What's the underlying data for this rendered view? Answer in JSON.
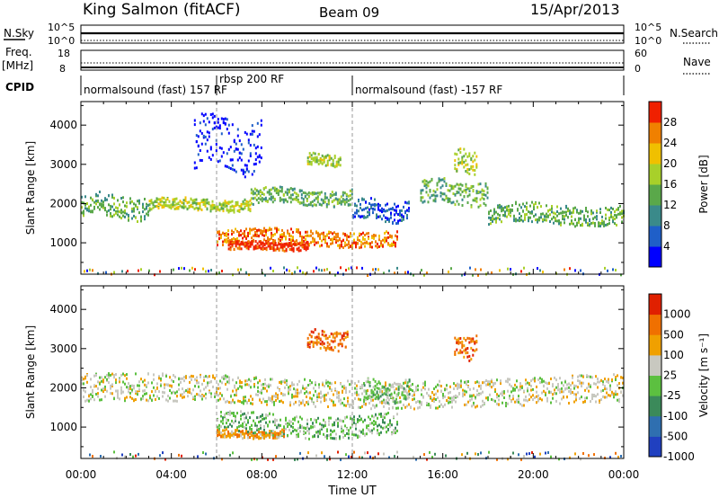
{
  "header": {
    "station": "King Salmon (fitACF)",
    "beam": "Beam 09",
    "date": "15/Apr/2013"
  },
  "summary_panels": {
    "nsky_label": "N.Sky",
    "nsearch_label": "N.Search",
    "freq_label_1": "Freq.",
    "freq_label_2": "[MHz]",
    "nave_label": "Nave",
    "cpid_label": "CPID",
    "nsky_ticks": [
      "10^5",
      "10^0"
    ],
    "nsearch_ticks": [
      "10^5",
      "10^0"
    ],
    "freq_ticks": [
      "18",
      "8"
    ],
    "nave_ticks": [
      "60",
      "0"
    ],
    "cpid_segments": [
      {
        "label": "normalsound (fast) 157 RF",
        "start_hr": 0.0,
        "end_hr": 6.0
      },
      {
        "label": "rbsp 200 RF",
        "start_hr": 6.0,
        "end_hr": 12.0
      },
      {
        "label": "normalsound (fast) -157 RF",
        "start_hr": 12.0,
        "end_hr": 24.0
      }
    ]
  },
  "chart_data": [
    {
      "type": "heatmap",
      "quantity": "power",
      "ylabel": "Slant Range [km]",
      "yticks": [
        1000,
        2000,
        3000,
        4000
      ],
      "ylim": [
        200,
        4600
      ],
      "xlim_hours": [
        0,
        24
      ],
      "colorbar": {
        "label": "Power [dB]",
        "ticks": [
          "4",
          "8",
          "12",
          "16",
          "20",
          "24",
          "28"
        ],
        "colors": [
          "#0000ff",
          "#1f5fc8",
          "#3a8a8a",
          "#5aa84a",
          "#a8d02a",
          "#f0c000",
          "#f08000",
          "#f02000"
        ]
      },
      "bands": [
        {
          "from_hr": 0.0,
          "to_hr": 3.0,
          "r0": 1650,
          "r1": 2250,
          "level": 3
        },
        {
          "from_hr": 3.0,
          "to_hr": 7.5,
          "r0": 1850,
          "r1": 2150,
          "level": 4
        },
        {
          "from_hr": 7.5,
          "to_hr": 12.0,
          "r0": 2000,
          "r1": 2400,
          "level": 3
        },
        {
          "from_hr": 12.0,
          "to_hr": 14.5,
          "r0": 1600,
          "r1": 2100,
          "level": 1
        },
        {
          "from_hr": 15.0,
          "to_hr": 18.0,
          "r0": 2000,
          "r1": 2600,
          "level": 3
        },
        {
          "from_hr": 18.0,
          "to_hr": 24.0,
          "r0": 1500,
          "r1": 2000,
          "level": 3
        },
        {
          "from_hr": 6.0,
          "to_hr": 14.0,
          "r0": 950,
          "r1": 1350,
          "level": 6
        },
        {
          "from_hr": 6.5,
          "to_hr": 10.0,
          "r0": 850,
          "r1": 1050,
          "level": 7
        },
        {
          "from_hr": 10.0,
          "to_hr": 11.5,
          "r0": 3000,
          "r1": 3300,
          "level": 4
        },
        {
          "from_hr": 16.5,
          "to_hr": 17.5,
          "r0": 2800,
          "r1": 3400,
          "level": 4
        },
        {
          "from_hr": 5.0,
          "to_hr": 8.0,
          "r0": 2900,
          "r1": 4200,
          "level": 0
        }
      ]
    },
    {
      "type": "heatmap",
      "quantity": "velocity",
      "ylabel": "Slant Range [km]",
      "yticks": [
        1000,
        2000,
        3000,
        4000
      ],
      "ylim": [
        200,
        4600
      ],
      "xlim_hours": [
        0,
        24
      ],
      "xticks": [
        "00:00",
        "04:00",
        "08:00",
        "12:00",
        "16:00",
        "20:00",
        "00:00"
      ],
      "xlabel": "Time UT",
      "colorbar": {
        "label": "Velocity [m s⁻¹]",
        "ticks": [
          "1000",
          "500",
          "100",
          "25",
          "-25",
          "-100",
          "-500",
          "-1000"
        ],
        "colors": [
          "#2040c0",
          "#2f6fb0",
          "#3b8a5a",
          "#5cc040",
          "#c8c8c0",
          "#f0a000",
          "#f07000",
          "#e02000"
        ]
      },
      "bands": [
        {
          "from_hr": 0.0,
          "to_hr": 24.0,
          "r0": 1600,
          "r1": 2300,
          "level": 4
        },
        {
          "from_hr": 6.0,
          "to_hr": 14.0,
          "r0": 800,
          "r1": 1350,
          "level": 3
        },
        {
          "from_hr": 6.0,
          "to_hr": 9.0,
          "r0": 750,
          "r1": 950,
          "level": 5
        },
        {
          "from_hr": 10.0,
          "to_hr": 11.8,
          "r0": 3000,
          "r1": 3500,
          "level": 6
        },
        {
          "from_hr": 12.5,
          "to_hr": 14.5,
          "r0": 1700,
          "r1": 2200,
          "level": 3
        },
        {
          "from_hr": 16.5,
          "to_hr": 17.5,
          "r0": 2800,
          "r1": 3400,
          "level": 6
        }
      ]
    }
  ]
}
